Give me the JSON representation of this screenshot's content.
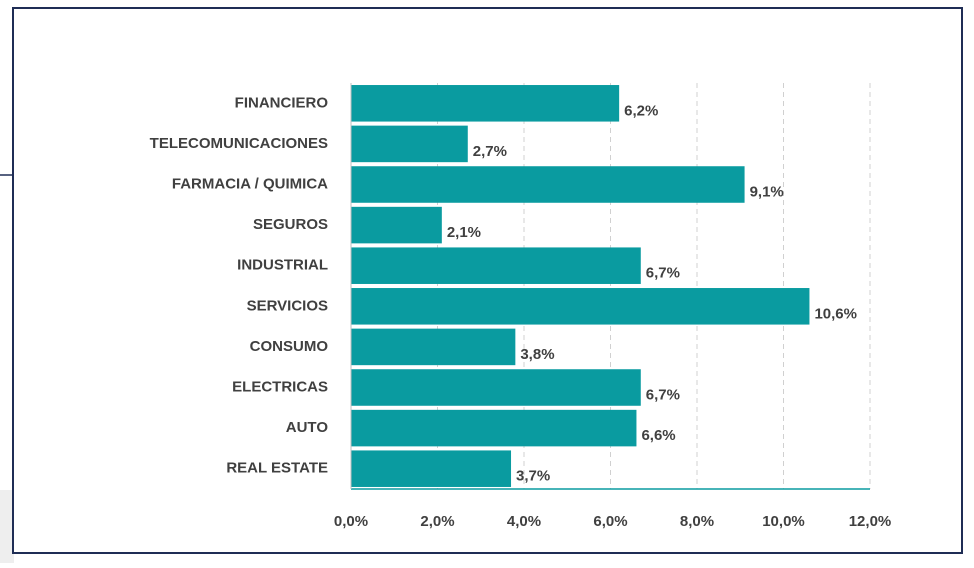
{
  "chart_data": {
    "type": "bar",
    "orientation": "horizontal",
    "categories": [
      "FINANCIERO",
      "TELECOMUNICACIONES",
      "FARMACIA / QUIMICA",
      "SEGUROS",
      "INDUSTRIAL",
      "SERVICIOS",
      "CONSUMO",
      "ELECTRICAS",
      "AUTO",
      "REAL ESTATE"
    ],
    "values": [
      6.2,
      2.7,
      9.1,
      2.1,
      6.7,
      10.6,
      3.8,
      6.7,
      6.6,
      3.7
    ],
    "value_labels": [
      "6,2%",
      "2,7%",
      "9,1%",
      "2,1%",
      "6,7%",
      "10,6%",
      "3,8%",
      "6,7%",
      "6,6%",
      "3,7%"
    ],
    "color": "#0a9ba0",
    "xlim": [
      0,
      12
    ],
    "xticks": [
      {
        "value": 0,
        "label": "0,0%"
      },
      {
        "value": 2,
        "label": "2,0%"
      },
      {
        "value": 4,
        "label": "4,0%"
      },
      {
        "value": 6,
        "label": "6,0%"
      },
      {
        "value": 8,
        "label": "8,0%"
      },
      {
        "value": 10,
        "label": "10,0%"
      },
      {
        "value": 12,
        "label": "12,0%"
      }
    ],
    "grid": true
  }
}
